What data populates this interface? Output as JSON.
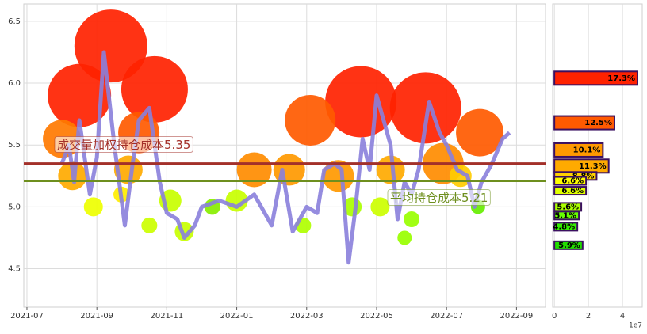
{
  "chart_data": [
    {
      "type": "line",
      "xlim": [
        -0.09,
        14.83
      ],
      "xticks": [
        {
          "value": 0,
          "label": "2021-07"
        },
        {
          "value": 2,
          "label": "2021-09"
        },
        {
          "value": 4,
          "label": "2021-11"
        },
        {
          "value": 6,
          "label": "2022-01"
        },
        {
          "value": 8,
          "label": "2022-03"
        },
        {
          "value": 10,
          "label": "2022-05"
        },
        {
          "value": 12,
          "label": "2022-07"
        },
        {
          "value": 14,
          "label": "2022-09"
        }
      ],
      "ylim": [
        4.19,
        6.64
      ],
      "yticks": [
        4.5,
        {
          "value": 5,
          "label": "5.0"
        },
        5.5,
        {
          "value": 6,
          "label": "6.0"
        },
        6.5
      ],
      "grid": true,
      "color": "#8a80dc",
      "x": [
        1.0,
        1.2,
        1.35,
        1.5,
        1.8,
        2.0,
        2.2,
        2.5,
        2.8,
        3.0,
        3.2,
        3.5,
        3.8,
        4.0,
        4.3,
        4.5,
        4.8,
        5.0,
        5.5,
        6.0,
        6.5,
        7.0,
        7.3,
        7.6,
        8.0,
        8.3,
        8.5,
        8.8,
        9.0,
        9.2,
        9.4,
        9.6,
        9.8,
        10.0,
        10.2,
        10.4,
        10.6,
        10.8,
        11.0,
        11.2,
        11.5,
        11.8,
        12.0,
        12.3,
        12.6,
        12.8,
        13.0,
        13.3,
        13.6,
        13.8
      ],
      "values": [
        5.35,
        5.5,
        5.2,
        5.7,
        5.1,
        5.4,
        6.25,
        5.5,
        4.85,
        5.3,
        5.7,
        5.8,
        5.2,
        4.95,
        4.9,
        4.75,
        4.85,
        5.0,
        5.05,
        5.0,
        5.1,
        4.85,
        5.3,
        4.8,
        5.0,
        4.95,
        5.3,
        5.35,
        5.3,
        4.55,
        5.0,
        5.55,
        5.3,
        5.9,
        5.7,
        5.5,
        4.9,
        5.2,
        5.1,
        5.3,
        5.85,
        5.6,
        5.5,
        5.3,
        5.25,
        5.0,
        5.2,
        5.35,
        5.55,
        5.6
      ],
      "bubbles": {
        "x": [
          2.4,
          1.5,
          3.65,
          9.55,
          11.4,
          8.1,
          12.95,
          1.0,
          6.5,
          11.9,
          3.2,
          8.9,
          7.5,
          1.3,
          2.9,
          10.4,
          4.1,
          6.0,
          12.4,
          1.9,
          4.5,
          9.3,
          10.1,
          5.3,
          3.5,
          7.9,
          11.0,
          12.9,
          2.7,
          10.8
        ],
        "y": [
          6.3,
          5.9,
          5.95,
          5.85,
          5.8,
          5.7,
          5.6,
          5.55,
          5.3,
          5.35,
          5.6,
          5.25,
          5.3,
          5.25,
          5.3,
          5.3,
          5.05,
          5.05,
          5.25,
          5.0,
          4.8,
          5.0,
          5.0,
          5.0,
          4.85,
          4.85,
          4.9,
          5.0,
          5.1,
          4.75
        ],
        "sizes": [
          46,
          40,
          42,
          45,
          45,
          32,
          30,
          24,
          22,
          26,
          26,
          20,
          20,
          18,
          18,
          18,
          14,
          14,
          14,
          12,
          12,
          12,
          12,
          10,
          10,
          10,
          10,
          9,
          10,
          9
        ],
        "colors": [
          "#ff2200",
          "#ff2200",
          "#ff2200",
          "#ff2200",
          "#ff2200",
          "#ff5a00",
          "#ff5a00",
          "#ff7a00",
          "#ff8c00",
          "#ff8c00",
          "#ff5a00",
          "#ff9900",
          "#ff9900",
          "#ffaa00",
          "#ffaa00",
          "#ffaa00",
          "#c8ff00",
          "#c8ff00",
          "#ffcc00",
          "#eeff00",
          "#c8ff00",
          "#aaff00",
          "#ccff00",
          "#88ee00",
          "#ccff00",
          "#b0ff00",
          "#99ff00",
          "#66ee00",
          "#ffee00",
          "#99ff00"
        ]
      },
      "hlines": [
        {
          "label": "成交量加权持仓成本",
          "value": 5.35,
          "color": "#a3302a"
        },
        {
          "label": "平均持仓成本",
          "value": 5.21,
          "color": "#6e8f1e"
        }
      ]
    },
    {
      "type": "barh",
      "xlim": [
        -0.1,
        5.16
      ],
      "xticks": [
        0,
        2,
        4
      ],
      "x_offset_label": "1e7",
      "ylim": [
        4.19,
        6.64
      ],
      "grid": true,
      "y": [
        6.04,
        5.68,
        5.46,
        5.33,
        5.25,
        5.21,
        5.13,
        5.0,
        4.93,
        4.84,
        4.69
      ],
      "values": [
        4.88,
        3.53,
        2.85,
        3.19,
        2.48,
        1.86,
        1.86,
        1.58,
        1.44,
        1.35,
        1.66
      ],
      "shares": [
        17.3,
        12.5,
        10.1,
        11.3,
        8.8,
        6.6,
        6.6,
        5.6,
        5.1,
        4.8,
        5.9
      ],
      "share_labels": [
        "17.3%",
        "12.5%",
        "10.1%",
        "11.3%",
        "8.8%",
        "6.6%",
        "6.6%",
        "5.6%",
        "5.1%",
        "4.8%",
        "5.9%"
      ],
      "colors": [
        "#ff2200",
        "#ff5a00",
        "#ff9900",
        "#ffaa00",
        "#ffd000",
        "#ffff00",
        "#e0ff00",
        "#aaff00",
        "#66ff00",
        "#33ee00",
        "#22dd00"
      ]
    }
  ]
}
